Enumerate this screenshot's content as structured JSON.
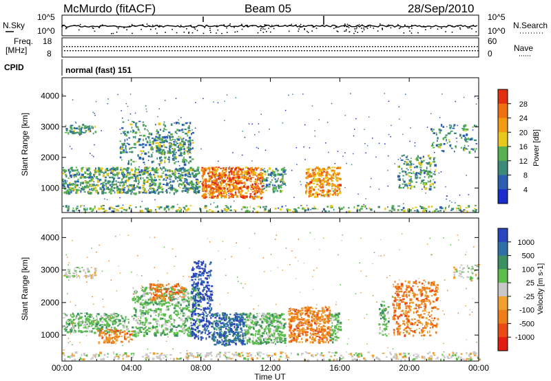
{
  "header": {
    "station": "McMurdo (fitACF)",
    "beam": "Beam 05",
    "date": "28/Sep/2010"
  },
  "aux_panels": {
    "nsky_label": "N.Sky",
    "nsearch_label": "N.Search",
    "noise_ticks_left": [
      "10^5",
      "10^0"
    ],
    "noise_ticks_right": [
      "10^5",
      "10^0"
    ],
    "freq_label_line1": "Freq.",
    "freq_label_line2": "[MHz]",
    "freq_ticks": [
      "18",
      "8"
    ],
    "nave_label": "Nave",
    "nave_ticks": [
      "60",
      "0"
    ],
    "cpid_label": "CPID",
    "cpid_value": "normal (fast) 151"
  },
  "chart_data": [
    {
      "type": "heatmap",
      "name": "power",
      "ylabel": "Slant Range [km]",
      "yticks": [
        1000,
        2000,
        3000,
        4000
      ],
      "ylim": [
        200,
        4600
      ],
      "xlim_hours": [
        0,
        24
      ],
      "colorbar": {
        "label": "Power [dB]",
        "ticks": [
          "4",
          "8",
          "12",
          "16",
          "20",
          "24",
          "28"
        ],
        "range": [
          0,
          32
        ],
        "colors": [
          "#1a2ccc",
          "#2d5fb0",
          "#3c8a78",
          "#56b050",
          "#e8c81a",
          "#f29a12",
          "#f07010",
          "#e23010"
        ]
      },
      "scatter_clusters": [
        {
          "t0": 0.0,
          "t1": 1.9,
          "r0": 2800,
          "r1": 3100,
          "density": 0.55,
          "level": 0.3
        },
        {
          "t0": 0.0,
          "t1": 7.9,
          "r0": 850,
          "r1": 1700,
          "density": 0.6,
          "level": 0.35
        },
        {
          "t0": 3.3,
          "t1": 7.5,
          "r0": 1800,
          "r1": 3200,
          "density": 0.25,
          "level": 0.3
        },
        {
          "t0": 5.0,
          "t1": 7.4,
          "r0": 2150,
          "r1": 2700,
          "density": 0.45,
          "level": 0.35
        },
        {
          "t0": 8.0,
          "t1": 11.5,
          "r0": 700,
          "r1": 1700,
          "density": 0.85,
          "level": 0.82
        },
        {
          "t0": 11.5,
          "t1": 12.8,
          "r0": 900,
          "r1": 1700,
          "density": 0.5,
          "level": 0.35
        },
        {
          "t0": 14.0,
          "t1": 16.0,
          "r0": 750,
          "r1": 1700,
          "density": 0.7,
          "level": 0.72
        },
        {
          "t0": 19.3,
          "t1": 21.5,
          "r0": 1000,
          "r1": 2100,
          "density": 0.35,
          "level": 0.35
        },
        {
          "t0": 21.2,
          "t1": 24.0,
          "r0": 2200,
          "r1": 3100,
          "density": 0.2,
          "level": 0.3
        },
        {
          "t0": 0.0,
          "t1": 24.0,
          "r0": 250,
          "r1": 450,
          "density": 0.3,
          "level": 0.4
        }
      ]
    },
    {
      "type": "heatmap",
      "name": "velocity",
      "xlabel": "Time UT",
      "ylabel": "Slant Range [km]",
      "yticks": [
        1000,
        2000,
        3000,
        4000
      ],
      "ylim": [
        200,
        4600
      ],
      "xticks": [
        "00:00",
        "04:00",
        "08:00",
        "12:00",
        "16:00",
        "20:00",
        "00:00"
      ],
      "xlim_hours": [
        0,
        24
      ],
      "colorbar": {
        "label": "Velocity [m s-1]",
        "ticks": [
          "1000",
          "500",
          "100",
          "25",
          "-25",
          "-100",
          "-500",
          "-1000"
        ],
        "colors": [
          "#2a45bf",
          "#2f6fa6",
          "#3c8f62",
          "#5bbd4a",
          "#c8c8c8",
          "#f0a030",
          "#ee7e18",
          "#ec4a14",
          "#e01d10"
        ]
      },
      "scatter_clusters": [
        {
          "t0": 0.0,
          "t1": 1.9,
          "r0": 2800,
          "r1": 3100,
          "density": 0.5,
          "level": 4
        },
        {
          "t0": 0.0,
          "t1": 3.8,
          "r0": 1100,
          "r1": 1700,
          "density": 0.6,
          "level": 3
        },
        {
          "t0": 2.0,
          "t1": 4.0,
          "r0": 800,
          "r1": 1200,
          "density": 0.5,
          "level": 6
        },
        {
          "t0": 4.0,
          "t1": 7.9,
          "r0": 1000,
          "r1": 2500,
          "density": 0.45,
          "level": 3
        },
        {
          "t0": 5.0,
          "t1": 7.0,
          "r0": 2100,
          "r1": 2600,
          "density": 0.5,
          "level": 6
        },
        {
          "t0": 7.4,
          "t1": 8.6,
          "r0": 900,
          "r1": 3300,
          "density": 0.5,
          "level": 0
        },
        {
          "t0": 8.6,
          "t1": 10.5,
          "r0": 700,
          "r1": 1700,
          "density": 0.8,
          "level": 1
        },
        {
          "t0": 10.5,
          "t1": 12.8,
          "r0": 750,
          "r1": 1700,
          "density": 0.7,
          "level": 3
        },
        {
          "t0": 13.0,
          "t1": 15.4,
          "r0": 800,
          "r1": 1900,
          "density": 0.7,
          "level": 6
        },
        {
          "t0": 15.4,
          "t1": 16.0,
          "r0": 800,
          "r1": 1700,
          "density": 0.6,
          "level": 3
        },
        {
          "t0": 18.2,
          "t1": 18.8,
          "r0": 1000,
          "r1": 2100,
          "density": 0.4,
          "level": 3
        },
        {
          "t0": 19.0,
          "t1": 21.6,
          "r0": 1000,
          "r1": 2700,
          "density": 0.4,
          "level": 6
        },
        {
          "t0": 22.5,
          "t1": 24.0,
          "r0": 2700,
          "r1": 3200,
          "density": 0.3,
          "level": 4
        },
        {
          "t0": 0.0,
          "t1": 24.0,
          "r0": 250,
          "r1": 500,
          "density": 0.3,
          "level": 4
        }
      ]
    }
  ]
}
